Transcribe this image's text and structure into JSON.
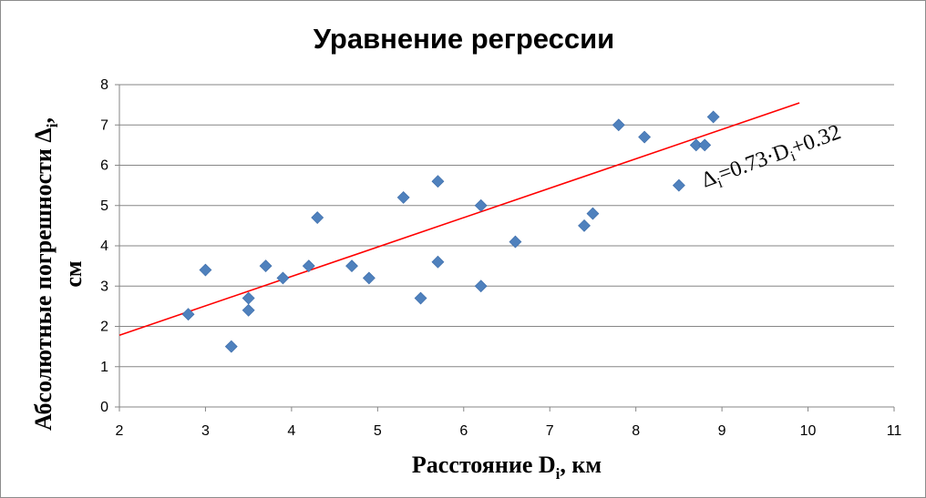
{
  "chart_data": {
    "type": "scatter",
    "title": "Уравнение регрессии",
    "xlabel": {
      "main": "Расстояние D",
      "sub": "i",
      "tail": ", км"
    },
    "ylabel": {
      "line1_main": "Абсолютные погрешности  Δ",
      "line1_sub": "i",
      "line1_tail": ",",
      "line2": "см"
    },
    "xlim": [
      2,
      11
    ],
    "ylim": [
      0,
      8
    ],
    "x_ticks": [
      2,
      3,
      4,
      5,
      6,
      7,
      8,
      9,
      10,
      11
    ],
    "y_ticks": [
      0,
      1,
      2,
      3,
      4,
      5,
      6,
      7,
      8
    ],
    "grid": "horizontal",
    "legend": "none",
    "marker_color": "#4f81bd",
    "trend_color": "#ff0000",
    "points": [
      {
        "x": 2.8,
        "y": 2.3
      },
      {
        "x": 3.0,
        "y": 3.4
      },
      {
        "x": 3.3,
        "y": 1.5
      },
      {
        "x": 3.5,
        "y": 2.7
      },
      {
        "x": 3.5,
        "y": 2.4
      },
      {
        "x": 3.7,
        "y": 3.5
      },
      {
        "x": 3.9,
        "y": 3.2
      },
      {
        "x": 4.2,
        "y": 3.5
      },
      {
        "x": 4.3,
        "y": 4.7
      },
      {
        "x": 4.7,
        "y": 3.5
      },
      {
        "x": 4.9,
        "y": 3.2
      },
      {
        "x": 5.3,
        "y": 5.2
      },
      {
        "x": 5.5,
        "y": 2.7
      },
      {
        "x": 5.7,
        "y": 5.6
      },
      {
        "x": 5.7,
        "y": 3.6
      },
      {
        "x": 6.2,
        "y": 5.0
      },
      {
        "x": 6.2,
        "y": 3.0
      },
      {
        "x": 6.6,
        "y": 4.1
      },
      {
        "x": 7.4,
        "y": 4.5
      },
      {
        "x": 7.5,
        "y": 4.8
      },
      {
        "x": 7.8,
        "y": 7.0
      },
      {
        "x": 8.1,
        "y": 6.7
      },
      {
        "x": 8.5,
        "y": 5.5
      },
      {
        "x": 8.7,
        "y": 6.5
      },
      {
        "x": 8.8,
        "y": 6.5
      },
      {
        "x": 8.9,
        "y": 7.2
      }
    ],
    "trendline": {
      "slope": 0.73,
      "intercept": 0.32,
      "x_range": [
        2,
        9.9
      ],
      "equation": {
        "delta": "Δ",
        "sub1": "i",
        "mid": "=0.73·D",
        "sub2": "i",
        "tail": "+0.32"
      }
    }
  }
}
